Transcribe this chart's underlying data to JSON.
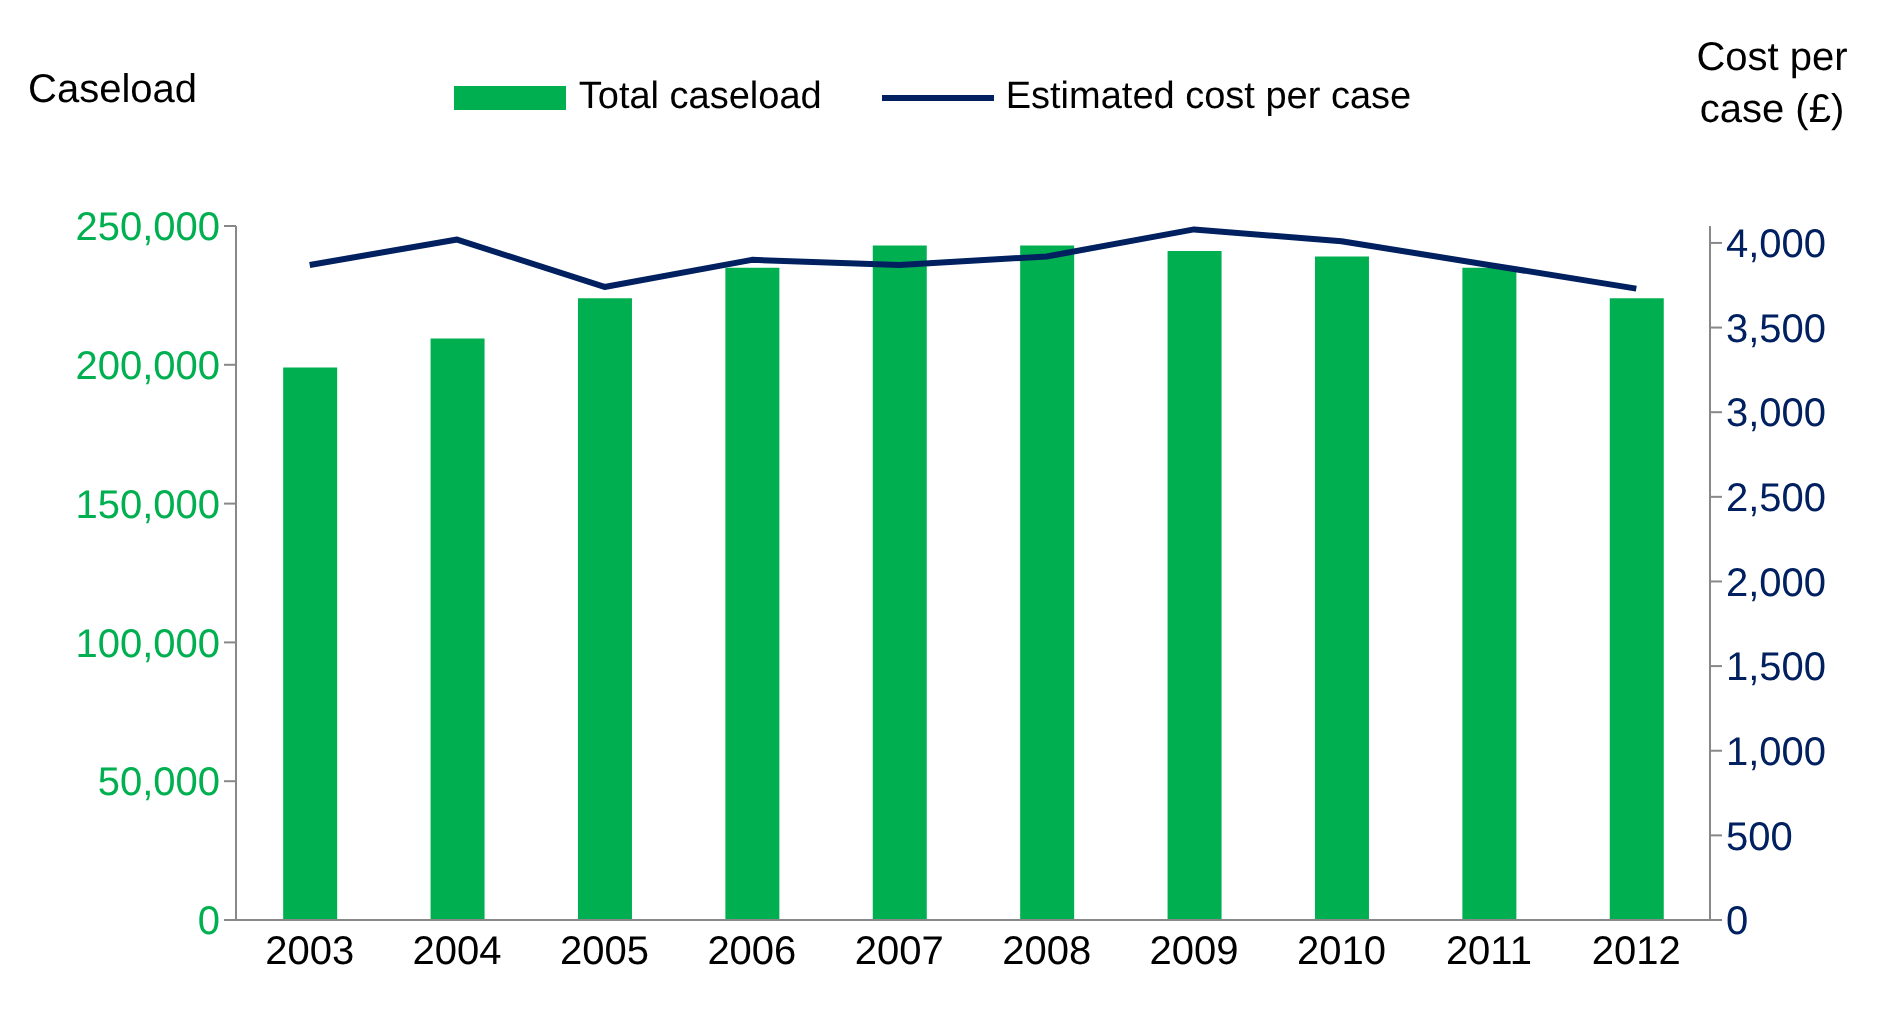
{
  "chart_data": {
    "type": "bar",
    "categories": [
      "2003",
      "2004",
      "2005",
      "2006",
      "2007",
      "2008",
      "2009",
      "2010",
      "2011",
      "2012"
    ],
    "series": [
      {
        "name": "Total caseload",
        "color": "#00b050",
        "values": [
          199000,
          209500,
          224000,
          235000,
          243000,
          243000,
          241000,
          239000,
          235000,
          224000
        ]
      },
      {
        "name": "Estimated cost per case",
        "type": "line",
        "axis": "y2",
        "color": "#002060",
        "values": [
          3870,
          4020,
          3740,
          3900,
          3870,
          3920,
          4080,
          4010,
          3870,
          3730
        ]
      }
    ],
    "ylabel": "Caseload",
    "y2label": "Cost per case (£)",
    "ylim": [
      0,
      250000
    ],
    "yticks": [
      0,
      {
        "value": 50000,
        "label": "50,000"
      },
      {
        "value": 100000,
        "label": "100,000"
      },
      {
        "value": 150000,
        "label": "150,000"
      },
      {
        "value": 200000,
        "label": "200,000"
      },
      {
        "value": 250000,
        "label": "250,000"
      }
    ],
    "y2lim": [
      0,
      4100
    ],
    "y2ticks": [
      0,
      500,
      {
        "value": 1000,
        "label": "1,000"
      },
      {
        "value": 1500,
        "label": "1,500"
      },
      {
        "value": 2000,
        "label": "2,000"
      },
      {
        "value": 2500,
        "label": "2,500"
      },
      {
        "value": 3000,
        "label": "3,000"
      },
      {
        "value": 3500,
        "label": "3,500"
      },
      {
        "value": 4000,
        "label": "4,000"
      }
    ],
    "grid": false,
    "legend": "top",
    "marker": "none",
    "line_style": "solid"
  }
}
